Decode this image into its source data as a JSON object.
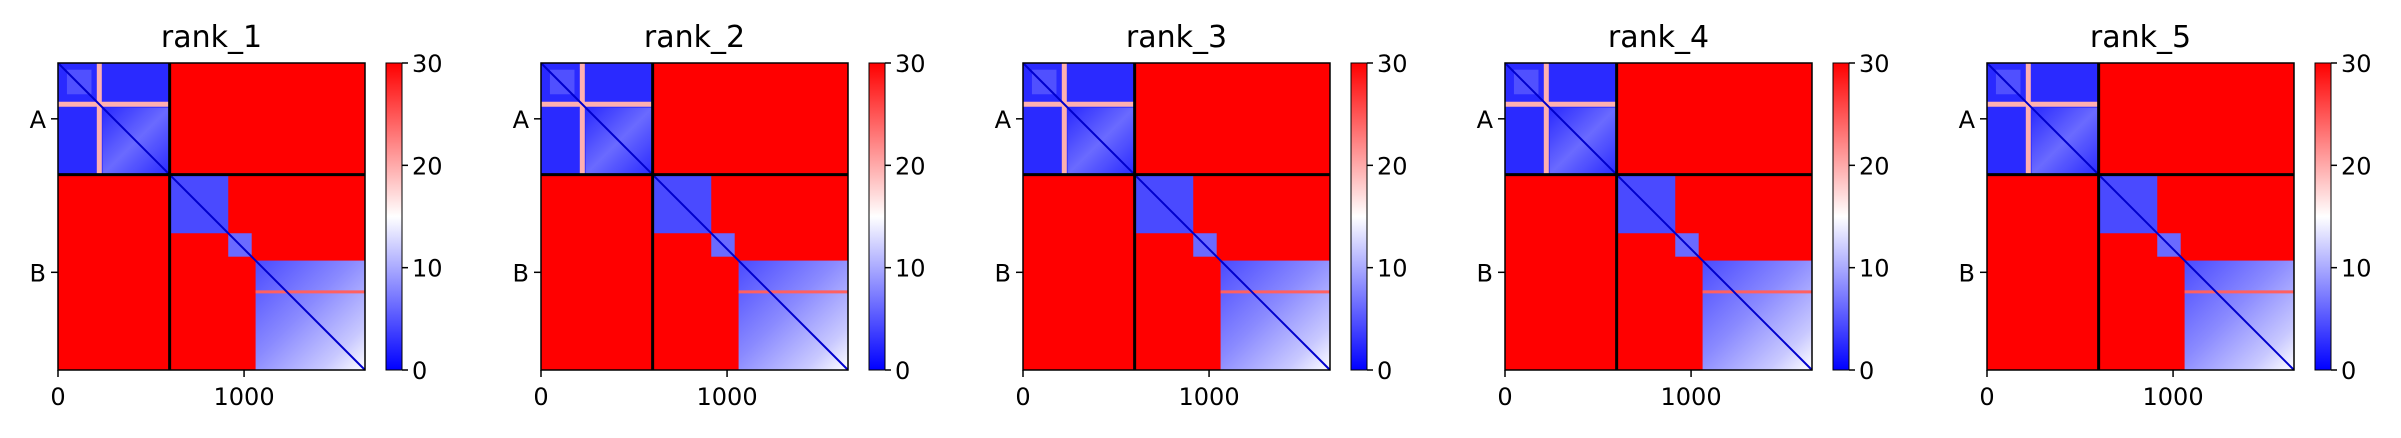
{
  "chart_data": [
    {
      "type": "heatmap",
      "title": "rank_1",
      "xlim": [
        0,
        1650
      ],
      "x_ticks": [
        "0",
        "1000"
      ],
      "y_ticks": [
        "A",
        "B"
      ],
      "chain_boundary": 600,
      "colorbar": {
        "range": [
          0,
          30
        ],
        "ticks": [
          "0",
          "10",
          "20",
          "30"
        ],
        "colors": [
          "#0000ff",
          "#ffffff",
          "#ff0000"
        ]
      }
    },
    {
      "type": "heatmap",
      "title": "rank_2",
      "xlim": [
        0,
        1650
      ],
      "x_ticks": [
        "0",
        "1000"
      ],
      "y_ticks": [
        "A",
        "B"
      ],
      "chain_boundary": 600,
      "colorbar": {
        "range": [
          0,
          30
        ],
        "ticks": [
          "0",
          "10",
          "20",
          "30"
        ],
        "colors": [
          "#0000ff",
          "#ffffff",
          "#ff0000"
        ]
      }
    },
    {
      "type": "heatmap",
      "title": "rank_3",
      "xlim": [
        0,
        1650
      ],
      "x_ticks": [
        "0",
        "1000"
      ],
      "y_ticks": [
        "A",
        "B"
      ],
      "chain_boundary": 600,
      "colorbar": {
        "range": [
          0,
          30
        ],
        "ticks": [
          "0",
          "10",
          "20",
          "30"
        ],
        "colors": [
          "#0000ff",
          "#ffffff",
          "#ff0000"
        ]
      }
    },
    {
      "type": "heatmap",
      "title": "rank_4",
      "xlim": [
        0,
        1650
      ],
      "x_ticks": [
        "0",
        "1000"
      ],
      "y_ticks": [
        "A",
        "B"
      ],
      "chain_boundary": 600,
      "colorbar": {
        "range": [
          0,
          30
        ],
        "ticks": [
          "0",
          "10",
          "20",
          "30"
        ],
        "colors": [
          "#0000ff",
          "#ffffff",
          "#ff0000"
        ]
      }
    },
    {
      "type": "heatmap",
      "title": "rank_5",
      "xlim": [
        0,
        1650
      ],
      "x_ticks": [
        "0",
        "1000"
      ],
      "y_ticks": [
        "A",
        "B"
      ],
      "chain_boundary": 600,
      "colorbar": {
        "range": [
          0,
          30
        ],
        "ticks": [
          "0",
          "10",
          "20",
          "30"
        ],
        "colors": [
          "#0000ff",
          "#ffffff",
          "#ff0000"
        ]
      }
    }
  ]
}
